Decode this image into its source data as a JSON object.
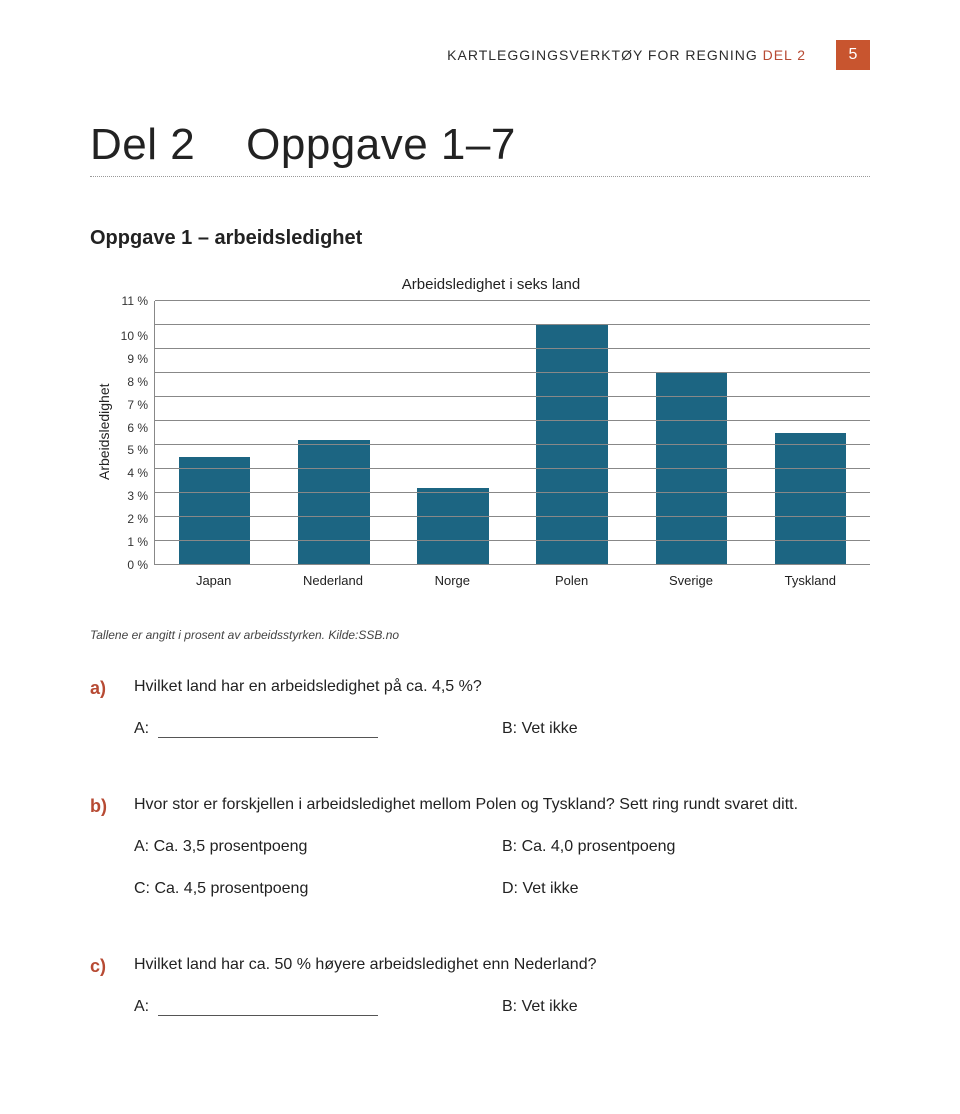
{
  "header": {
    "text_prefix": "KARTLEGGINGSVERKTØY FOR REGNING ",
    "text_suffix": "DEL 2",
    "page_number": "5"
  },
  "title": {
    "part_label": "Del 2",
    "range": "Oppgave 1–7"
  },
  "oppgave_heading": "Oppgave 1 – arbeidsledighet",
  "chart": {
    "type": "bar",
    "title": "Arbeidsledighet i seks land",
    "y_label": "Arbeidsledighet",
    "y_max": 11,
    "y_ticks": [
      "11 %",
      "10 %",
      "9 %",
      "8 %",
      "7 %",
      "6 %",
      "5 %",
      "4 %",
      "3 %",
      "2 %",
      "1 %",
      "0 %"
    ],
    "categories": [
      "Japan",
      "Nederland",
      "Norge",
      "Polen",
      "Sverige",
      "Tyskland"
    ],
    "values": [
      4.5,
      5.2,
      3.2,
      10.0,
      8.0,
      5.5
    ],
    "bar_color": "#1c6582",
    "grid_color": "#888888",
    "background_color": "#ffffff",
    "label_fontsize": 13,
    "title_fontsize": 15
  },
  "source_note": "Tallene er angitt i prosent av arbeidsstyrken. Kilde:SSB.no",
  "questions": {
    "a": {
      "label": "a)",
      "text": "Hvilket land har en arbeidsledighet på ca. 4,5 %?",
      "ans_a_prefix": "A:",
      "ans_b": "B: Vet ikke"
    },
    "b": {
      "label": "b)",
      "text": "Hvor stor er forskjellen i arbeidsledighet mellom Polen og Tyskland? Sett ring rundt svaret ditt.",
      "opt_a": "A: Ca. 3,5 prosentpoeng",
      "opt_b": "B: Ca. 4,0 prosentpoeng",
      "opt_c": "C: Ca. 4,5 prosentpoeng",
      "opt_d": "D: Vet ikke"
    },
    "c": {
      "label": "c)",
      "text": "Hvilket land har ca. 50 % høyere arbeidsledighet enn Nederland?",
      "ans_a_prefix": "A:",
      "ans_b": "B: Vet ikke"
    }
  }
}
